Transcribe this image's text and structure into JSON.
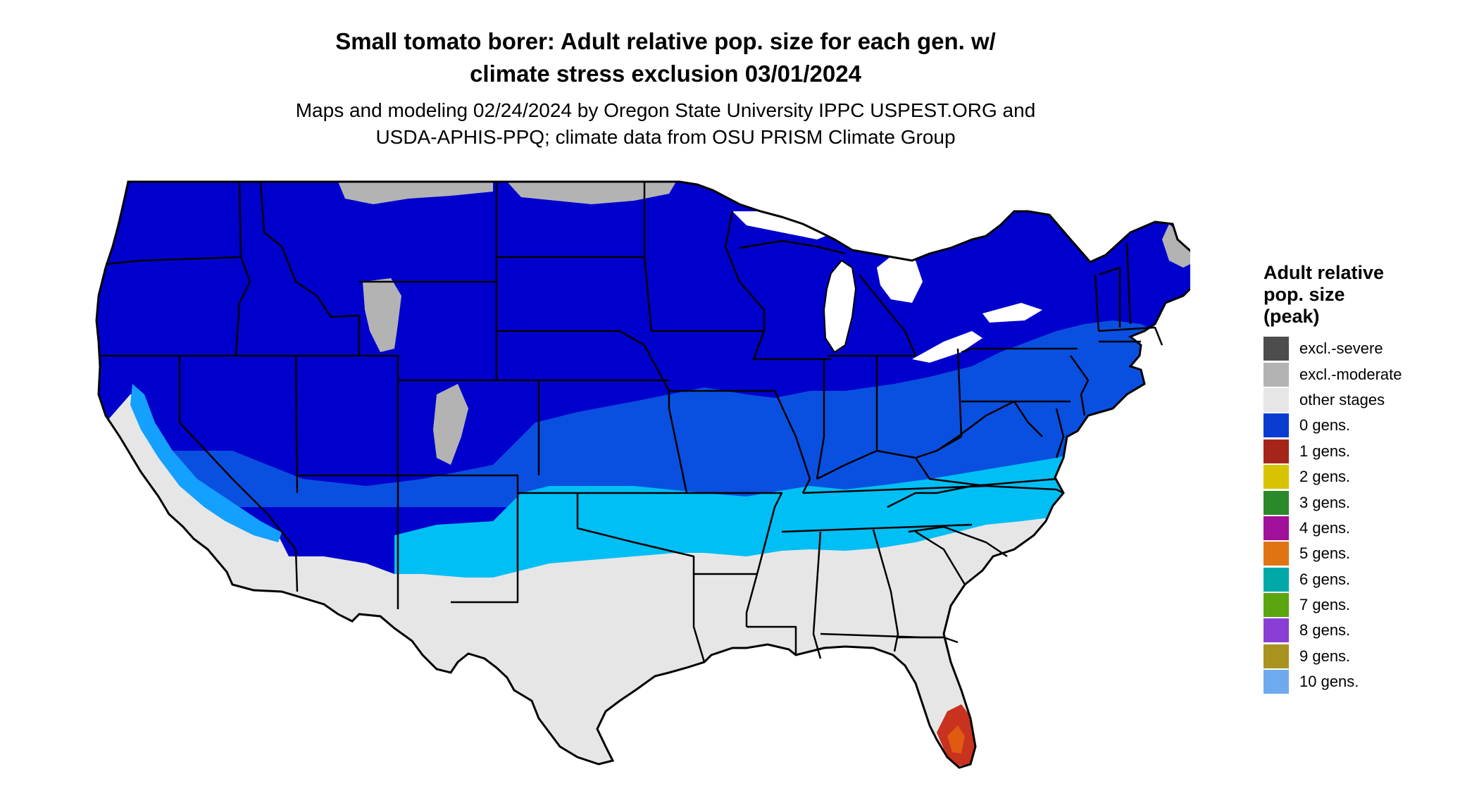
{
  "map": {
    "title_line1": "Small tomato borer: Adult relative pop. size for each gen. w/",
    "title_line2": "climate stress exclusion 03/01/2024",
    "subtitle_line1": "Maps and modeling 02/24/2024 by Oregon State University IPPC USPEST.ORG and",
    "subtitle_line2": "USDA-APHIS-PPQ; climate data from OSU PRISM Climate Group"
  },
  "legend": {
    "title_line1": "Adult relative",
    "title_line2": "pop. size",
    "title_line3": "(peak)",
    "items": [
      {
        "label": "excl.-severe",
        "color": "#4d4d4d"
      },
      {
        "label": "excl.-moderate",
        "color": "#b3b3b3"
      },
      {
        "label": "other stages",
        "color": "#e6e6e6"
      },
      {
        "label": "0 gens.",
        "color": "#0a3cd2"
      },
      {
        "label": "1 gens.",
        "color": "#a6251a"
      },
      {
        "label": "2 gens.",
        "color": "#d8c300"
      },
      {
        "label": "3 gens.",
        "color": "#2a8a2a"
      },
      {
        "label": "4 gens.",
        "color": "#a0109a"
      },
      {
        "label": "5 gens.",
        "color": "#e07413"
      },
      {
        "label": "6 gens.",
        "color": "#00a8a8"
      },
      {
        "label": "7 gens.",
        "color": "#5aa510"
      },
      {
        "label": "8 gens.",
        "color": "#8a3ed6"
      },
      {
        "label": "9 gens.",
        "color": "#a89220"
      },
      {
        "label": "10 gens.",
        "color": "#6eaaf0"
      }
    ]
  },
  "zone_colors": {
    "deep_blue": "#0000cc",
    "mid_blue": "#0a50e0",
    "light_blue": "#00bff5",
    "sky_blue": "#14a0ff",
    "gray_land": "#e6e6e6",
    "excl_moderate": "#b3b3b3",
    "red_florida": "#c8321e",
    "orange_florida": "#e05a12"
  }
}
